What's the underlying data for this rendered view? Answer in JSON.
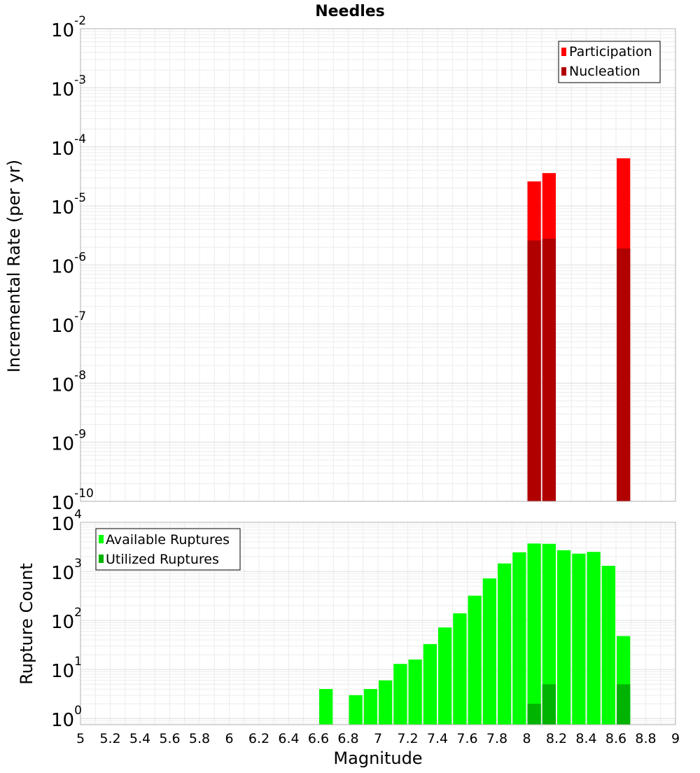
{
  "chart_data": [
    {
      "type": "bar",
      "title": "Needles",
      "xlabel": "",
      "ylabel": "Incremental Rate (per yr)",
      "xlim": [
        5,
        9
      ],
      "ylim": [
        1e-10,
        0.01
      ],
      "yscale": "log",
      "grid": true,
      "legend_position": "top-right",
      "bin_width": 0.1,
      "x": [
        8.05,
        8.15,
        8.65
      ],
      "series": [
        {
          "name": "Participation",
          "color": "#ff0000",
          "values": [
            2.6e-05,
            3.6e-05,
            6.4e-05
          ]
        },
        {
          "name": "Nucleation",
          "color": "#b00000",
          "values": [
            2.6e-06,
            2.8e-06,
            1.9e-06
          ]
        }
      ],
      "y_tick_labels": [
        {
          "base": "10",
          "exp": "-10"
        },
        {
          "base": "10",
          "exp": "-9"
        },
        {
          "base": "10",
          "exp": "-8"
        },
        {
          "base": "10",
          "exp": "-7"
        },
        {
          "base": "10",
          "exp": "-6"
        },
        {
          "base": "10",
          "exp": "-5"
        },
        {
          "base": "10",
          "exp": "-4"
        },
        {
          "base": "10",
          "exp": "-3"
        },
        {
          "base": "10",
          "exp": "-2"
        }
      ]
    },
    {
      "type": "bar",
      "title": "",
      "xlabel": "Magnitude",
      "ylabel": "Rupture Count",
      "xlim": [
        5,
        9
      ],
      "ylim": [
        0.75,
        10000
      ],
      "yscale": "log",
      "grid": true,
      "legend_position": "top-left",
      "bin_width": 0.1,
      "x": [
        6.65,
        6.85,
        6.95,
        7.05,
        7.15,
        7.25,
        7.35,
        7.45,
        7.55,
        7.65,
        7.75,
        7.85,
        7.95,
        8.05,
        8.15,
        8.25,
        8.35,
        8.45,
        8.55,
        8.65
      ],
      "series": [
        {
          "name": "Available Ruptures",
          "color": "#00ff00",
          "values": [
            4,
            3,
            4,
            6,
            13,
            16,
            33,
            72,
            140,
            320,
            720,
            1450,
            2450,
            3700,
            3650,
            2700,
            2300,
            2500,
            1300,
            48
          ]
        },
        {
          "name": "Utilized Ruptures",
          "color": "#00b300",
          "values": [
            0,
            0,
            0,
            0,
            0,
            0,
            0,
            0,
            0,
            0,
            0,
            0,
            0,
            2,
            5,
            0,
            0,
            0,
            0,
            5
          ]
        }
      ],
      "x_tick_labels": [
        "5",
        "5.2",
        "5.4",
        "5.6",
        "5.8",
        "6",
        "6.2",
        "6.4",
        "6.6",
        "6.8",
        "7",
        "7.2",
        "7.4",
        "7.6",
        "7.8",
        "8",
        "8.2",
        "8.4",
        "8.6",
        "8.8",
        "9"
      ],
      "y_tick_labels": [
        {
          "base": "10",
          "exp": "0"
        },
        {
          "base": "10",
          "exp": "1"
        },
        {
          "base": "10",
          "exp": "2"
        },
        {
          "base": "10",
          "exp": "3"
        },
        {
          "base": "10",
          "exp": "4"
        }
      ]
    }
  ]
}
